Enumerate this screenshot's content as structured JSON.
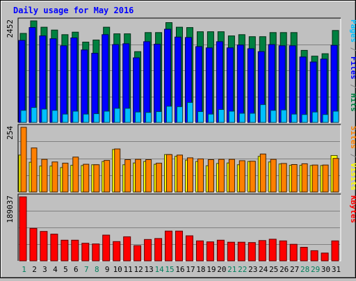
{
  "chart_data": [
    {
      "type": "bar",
      "title": "Daily usage for May 2016",
      "categories": [
        "1",
        "2",
        "3",
        "4",
        "5",
        "6",
        "7",
        "8",
        "9",
        "10",
        "11",
        "12",
        "13",
        "14",
        "15",
        "16",
        "17",
        "18",
        "19",
        "20",
        "21",
        "22",
        "23",
        "24",
        "25",
        "26",
        "27",
        "28",
        "29",
        "30",
        "31"
      ],
      "weekend_days": [
        "1",
        "7",
        "8",
        "14",
        "15",
        "21",
        "22",
        "28",
        "29"
      ],
      "ymax_label": "2452",
      "ymax": 2452,
      "right_axis_labels": [
        {
          "text": "Pages",
          "color": "#00c0ff"
        },
        {
          "text": " / ",
          "color": "#808080"
        },
        {
          "text": "Files",
          "color": "#0000ff"
        },
        {
          "text": " / ",
          "color": "#808080"
        },
        {
          "text": "Hits",
          "color": "#008040"
        }
      ],
      "series": [
        {
          "name": "Hits",
          "color": "#008040",
          "values": [
            2150,
            2452,
            2300,
            2230,
            2120,
            2180,
            1940,
            1990,
            2300,
            2140,
            2140,
            1710,
            2170,
            2170,
            2410,
            2300,
            2290,
            2190,
            2190,
            2190,
            2090,
            2120,
            2070,
            2070,
            2170,
            2170,
            2170,
            1740,
            1600,
            1660,
            2220
          ]
        },
        {
          "name": "Files",
          "color": "#0000ff",
          "values": [
            1980,
            2290,
            2090,
            2020,
            1850,
            2040,
            1750,
            1670,
            2120,
            1880,
            1900,
            1560,
            1950,
            1890,
            2250,
            2060,
            2050,
            1830,
            1800,
            1950,
            1800,
            1870,
            1780,
            1710,
            1880,
            1850,
            1850,
            1580,
            1460,
            1530,
            1860
          ]
        },
        {
          "name": "Pages",
          "color": "#00c0ff",
          "values": [
            290,
            360,
            320,
            290,
            200,
            270,
            200,
            210,
            270,
            340,
            340,
            250,
            240,
            260,
            390,
            380,
            480,
            260,
            200,
            310,
            270,
            220,
            220,
            430,
            290,
            300,
            200,
            190,
            250,
            190,
            270
          ]
        }
      ]
    },
    {
      "type": "bar",
      "ymax_label": "254",
      "ymax": 254,
      "right_axis_labels": [
        {
          "text": "Sites",
          "color": "#ff8000"
        },
        {
          "text": " / ",
          "color": "#808080"
        },
        {
          "text": "Visits",
          "color": "#ffff00"
        }
      ],
      "series": [
        {
          "name": "Visits",
          "color": "#ffff00",
          "values": [
            145,
            117,
            102,
            102,
            96,
            105,
            104,
            107,
            120,
            167,
            107,
            114,
            120,
            109,
            147,
            140,
            125,
            120,
            103,
            112,
            114,
            107,
            120,
            140,
            118,
            110,
            105,
            105,
            104,
            104,
            143
          ]
        },
        {
          "name": "Sites",
          "color": "#ff8000",
          "values": [
            254,
            173,
            128,
            118,
            113,
            137,
            109,
            107,
            124,
            169,
            127,
            128,
            127,
            113,
            147,
            145,
            134,
            130,
            127,
            128,
            128,
            123,
            121,
            149,
            128,
            112,
            108,
            111,
            106,
            106,
            132
          ]
        }
      ]
    },
    {
      "type": "bar",
      "ymax_label": "189037",
      "ymax": 189037,
      "right_axis_labels": [
        {
          "text": "KBytes",
          "color": "#ff0000"
        }
      ],
      "series": [
        {
          "name": "KBytes",
          "color": "#ff0000",
          "values": [
            189037,
            96000,
            87000,
            79000,
            61000,
            61000,
            52000,
            50000,
            76000,
            57000,
            71000,
            45000,
            63000,
            66000,
            88000,
            88000,
            74000,
            59000,
            56000,
            61000,
            55000,
            55000,
            54000,
            60000,
            64000,
            59000,
            49000,
            40000,
            30000,
            23000,
            59000
          ]
        }
      ]
    }
  ]
}
